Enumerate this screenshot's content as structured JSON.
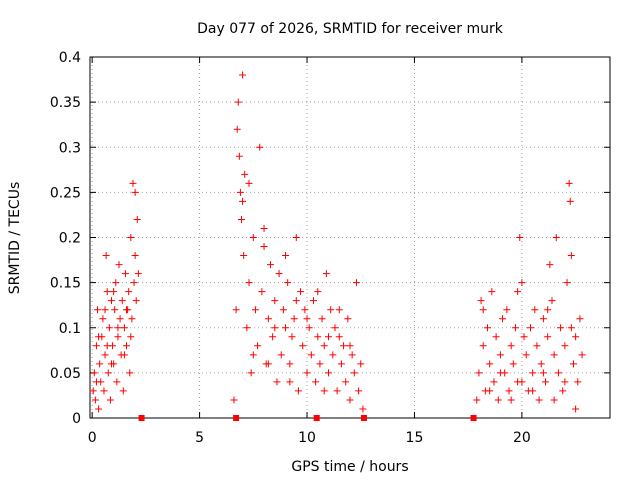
{
  "chart_data": {
    "type": "scatter",
    "title": "Day 077 of 2026, SRMTID for receiver murk",
    "xlabel": "GPS time / hours",
    "ylabel": "SRMTID / TECUs",
    "xlim": [
      -0.1,
      24.1
    ],
    "ylim": [
      0,
      0.4
    ],
    "grid": true,
    "legend": "none",
    "marker": "+",
    "series_color": "#ff0000",
    "x_ticks": [
      0,
      5,
      10,
      15,
      20
    ],
    "x_tick_labels": [
      "0",
      "5",
      "10",
      "15",
      "20"
    ],
    "y_ticks": [
      0,
      0.05,
      0.1,
      0.15,
      0.2,
      0.25,
      0.3,
      0.35,
      0.4
    ],
    "y_tick_labels": [
      "0",
      "0.05",
      "0.1",
      "0.15",
      "0.2",
      "0.25",
      "0.3",
      "0.35",
      "0.4"
    ],
    "axis_markers_x": [
      2.3,
      6.7,
      10.45,
      12.65,
      17.75
    ],
    "series": [
      {
        "name": "SRMTID",
        "points": [
          [
            0.05,
            0.03
          ],
          [
            0.1,
            0.05
          ],
          [
            0.15,
            0.02
          ],
          [
            0.2,
            0.08
          ],
          [
            0.25,
            0.12
          ],
          [
            0.3,
            0.01
          ],
          [
            0.35,
            0.06
          ],
          [
            0.4,
            0.04
          ],
          [
            0.45,
            0.09
          ],
          [
            0.5,
            0.11
          ],
          [
            0.55,
            0.03
          ],
          [
            0.6,
            0.07
          ],
          [
            0.65,
            0.18
          ],
          [
            0.7,
            0.14
          ],
          [
            0.75,
            0.05
          ],
          [
            0.8,
            0.1
          ],
          [
            0.85,
            0.02
          ],
          [
            0.9,
            0.13
          ],
          [
            0.95,
            0.08
          ],
          [
            1.0,
            0.06
          ],
          [
            1.05,
            0.12
          ],
          [
            1.1,
            0.15
          ],
          [
            1.15,
            0.04
          ],
          [
            1.2,
            0.09
          ],
          [
            1.25,
            0.17
          ],
          [
            1.3,
            0.11
          ],
          [
            1.35,
            0.07
          ],
          [
            1.4,
            0.13
          ],
          [
            1.45,
            0.03
          ],
          [
            1.5,
            0.1
          ],
          [
            1.55,
            0.16
          ],
          [
            1.6,
            0.08
          ],
          [
            1.65,
            0.12
          ],
          [
            1.7,
            0.14
          ],
          [
            1.75,
            0.05
          ],
          [
            1.8,
            0.2
          ],
          [
            1.85,
            0.11
          ],
          [
            1.9,
            0.26
          ],
          [
            1.95,
            0.15
          ],
          [
            2.0,
            0.25
          ],
          [
            2.05,
            0.13
          ],
          [
            2.1,
            0.22
          ],
          [
            2.15,
            0.16
          ],
          [
            0.3,
            0.09
          ],
          [
            0.6,
            0.12
          ],
          [
            0.9,
            0.06
          ],
          [
            1.2,
            0.1
          ],
          [
            1.5,
            0.07
          ],
          [
            1.8,
            0.09
          ],
          [
            2.0,
            0.18
          ],
          [
            0.2,
            0.04
          ],
          [
            0.7,
            0.08
          ],
          [
            1.0,
            0.14
          ],
          [
            1.6,
            0.12
          ],
          [
            6.6,
            0.02
          ],
          [
            6.7,
            0.12
          ],
          [
            6.75,
            0.32
          ],
          [
            6.8,
            0.35
          ],
          [
            6.85,
            0.29
          ],
          [
            6.9,
            0.25
          ],
          [
            6.95,
            0.22
          ],
          [
            7.0,
            0.38
          ],
          [
            7.05,
            0.18
          ],
          [
            7.1,
            0.27
          ],
          [
            7.2,
            0.1
          ],
          [
            7.3,
            0.15
          ],
          [
            7.4,
            0.05
          ],
          [
            7.5,
            0.2
          ],
          [
            7.6,
            0.12
          ],
          [
            7.7,
            0.08
          ],
          [
            7.8,
            0.3
          ],
          [
            7.9,
            0.14
          ],
          [
            8.0,
            0.21
          ],
          [
            8.1,
            0.06
          ],
          [
            8.2,
            0.11
          ],
          [
            8.3,
            0.17
          ],
          [
            8.4,
            0.09
          ],
          [
            8.5,
            0.13
          ],
          [
            8.6,
            0.04
          ],
          [
            8.7,
            0.16
          ],
          [
            8.8,
            0.07
          ],
          [
            8.9,
            0.12
          ],
          [
            9.0,
            0.1
          ],
          [
            9.1,
            0.15
          ],
          [
            9.2,
            0.06
          ],
          [
            9.3,
            0.09
          ],
          [
            9.4,
            0.11
          ],
          [
            9.5,
            0.2
          ],
          [
            9.6,
            0.03
          ],
          [
            9.7,
            0.14
          ],
          [
            9.8,
            0.08
          ],
          [
            9.9,
            0.12
          ],
          [
            10.0,
            0.05
          ],
          [
            10.1,
            0.1
          ],
          [
            10.2,
            0.07
          ],
          [
            10.3,
            0.13
          ],
          [
            10.4,
            0.04
          ],
          [
            10.5,
            0.09
          ],
          [
            10.6,
            0.06
          ],
          [
            10.7,
            0.11
          ],
          [
            10.8,
            0.08
          ],
          [
            10.9,
            0.16
          ],
          [
            11.0,
            0.05
          ],
          [
            11.1,
            0.12
          ],
          [
            11.2,
            0.07
          ],
          [
            11.3,
            0.1
          ],
          [
            11.4,
            0.03
          ],
          [
            11.5,
            0.09
          ],
          [
            11.6,
            0.06
          ],
          [
            11.7,
            0.08
          ],
          [
            11.8,
            0.04
          ],
          [
            11.9,
            0.11
          ],
          [
            12.0,
            0.02
          ],
          [
            12.1,
            0.07
          ],
          [
            12.2,
            0.05
          ],
          [
            12.3,
            0.15
          ],
          [
            12.4,
            0.03
          ],
          [
            12.5,
            0.06
          ],
          [
            12.6,
            0.01
          ],
          [
            7.0,
            0.24
          ],
          [
            7.3,
            0.26
          ],
          [
            8.0,
            0.19
          ],
          [
            8.5,
            0.1
          ],
          [
            9.0,
            0.18
          ],
          [
            9.5,
            0.13
          ],
          [
            10.0,
            0.11
          ],
          [
            10.5,
            0.14
          ],
          [
            11.0,
            0.09
          ],
          [
            11.5,
            0.12
          ],
          [
            12.0,
            0.08
          ],
          [
            7.5,
            0.07
          ],
          [
            8.2,
            0.06
          ],
          [
            9.2,
            0.04
          ],
          [
            10.8,
            0.03
          ],
          [
            17.9,
            0.02
          ],
          [
            18.0,
            0.05
          ],
          [
            18.1,
            0.13
          ],
          [
            18.2,
            0.08
          ],
          [
            18.3,
            0.03
          ],
          [
            18.4,
            0.1
          ],
          [
            18.5,
            0.06
          ],
          [
            18.6,
            0.14
          ],
          [
            18.7,
            0.04
          ],
          [
            18.8,
            0.09
          ],
          [
            18.9,
            0.02
          ],
          [
            19.0,
            0.07
          ],
          [
            19.1,
            0.11
          ],
          [
            19.2,
            0.05
          ],
          [
            19.3,
            0.12
          ],
          [
            19.4,
            0.03
          ],
          [
            19.5,
            0.08
          ],
          [
            19.6,
            0.06
          ],
          [
            19.7,
            0.1
          ],
          [
            19.8,
            0.04
          ],
          [
            19.9,
            0.2
          ],
          [
            20.0,
            0.15
          ],
          [
            20.1,
            0.09
          ],
          [
            20.2,
            0.07
          ],
          [
            20.3,
            0.03
          ],
          [
            20.4,
            0.1
          ],
          [
            20.5,
            0.05
          ],
          [
            20.6,
            0.12
          ],
          [
            20.7,
            0.08
          ],
          [
            20.8,
            0.02
          ],
          [
            20.9,
            0.06
          ],
          [
            21.0,
            0.11
          ],
          [
            21.1,
            0.04
          ],
          [
            21.2,
            0.09
          ],
          [
            21.3,
            0.17
          ],
          [
            21.4,
            0.13
          ],
          [
            21.5,
            0.07
          ],
          [
            21.6,
            0.2
          ],
          [
            21.7,
            0.05
          ],
          [
            21.8,
            0.1
          ],
          [
            21.9,
            0.03
          ],
          [
            22.0,
            0.08
          ],
          [
            22.1,
            0.15
          ],
          [
            22.2,
            0.26
          ],
          [
            22.25,
            0.24
          ],
          [
            22.3,
            0.18
          ],
          [
            22.4,
            0.06
          ],
          [
            22.5,
            0.09
          ],
          [
            22.6,
            0.04
          ],
          [
            22.7,
            0.11
          ],
          [
            22.8,
            0.07
          ],
          [
            18.5,
            0.03
          ],
          [
            19.0,
            0.05
          ],
          [
            19.5,
            0.02
          ],
          [
            20.0,
            0.04
          ],
          [
            20.5,
            0.03
          ],
          [
            21.0,
            0.05
          ],
          [
            21.5,
            0.02
          ],
          [
            22.0,
            0.04
          ],
          [
            22.5,
            0.01
          ],
          [
            18.2,
            0.12
          ],
          [
            19.8,
            0.14
          ],
          [
            21.2,
            0.12
          ],
          [
            22.3,
            0.1
          ]
        ]
      }
    ]
  }
}
